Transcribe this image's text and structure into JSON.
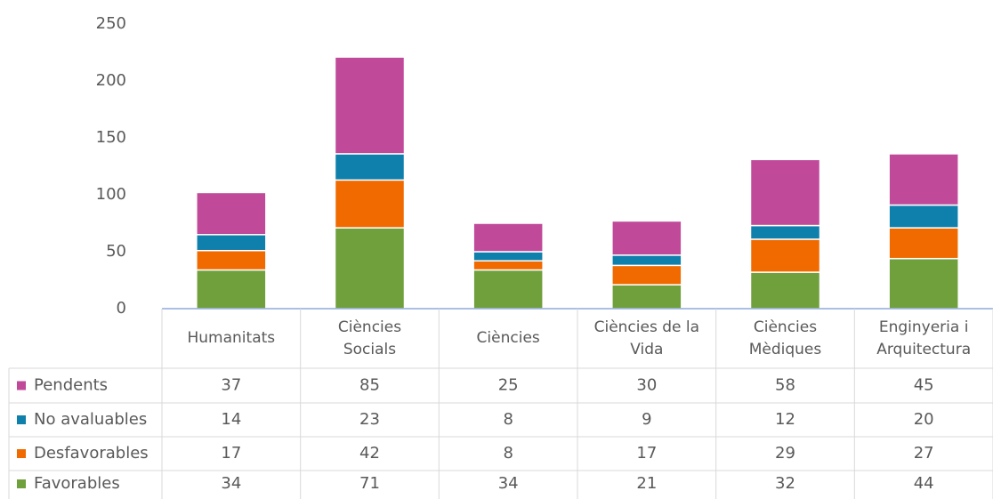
{
  "chart_data": {
    "type": "stacked_bar",
    "categories": [
      "Humanitats",
      "Ciències\nSocials",
      "Ciències",
      "Ciències de la\nVida",
      "Ciències\nMèdiques",
      "Enginyeria i\nArquitectura"
    ],
    "series": [
      {
        "name": "Favorables",
        "color": "#70a03c",
        "values": [
          34,
          71,
          34,
          21,
          32,
          44
        ]
      },
      {
        "name": "Desfavorables",
        "color": "#f06a00",
        "values": [
          17,
          42,
          8,
          17,
          29,
          27
        ]
      },
      {
        "name": "No avaluables",
        "color": "#0f7fab",
        "values": [
          14,
          23,
          8,
          9,
          12,
          20
        ]
      },
      {
        "name": "Pendents",
        "color": "#c0499a",
        "values": [
          37,
          85,
          25,
          30,
          58,
          45
        ]
      }
    ],
    "ylim": [
      0,
      250
    ],
    "yticks": [
      0,
      50,
      100,
      150,
      200,
      250
    ],
    "grid": false
  }
}
